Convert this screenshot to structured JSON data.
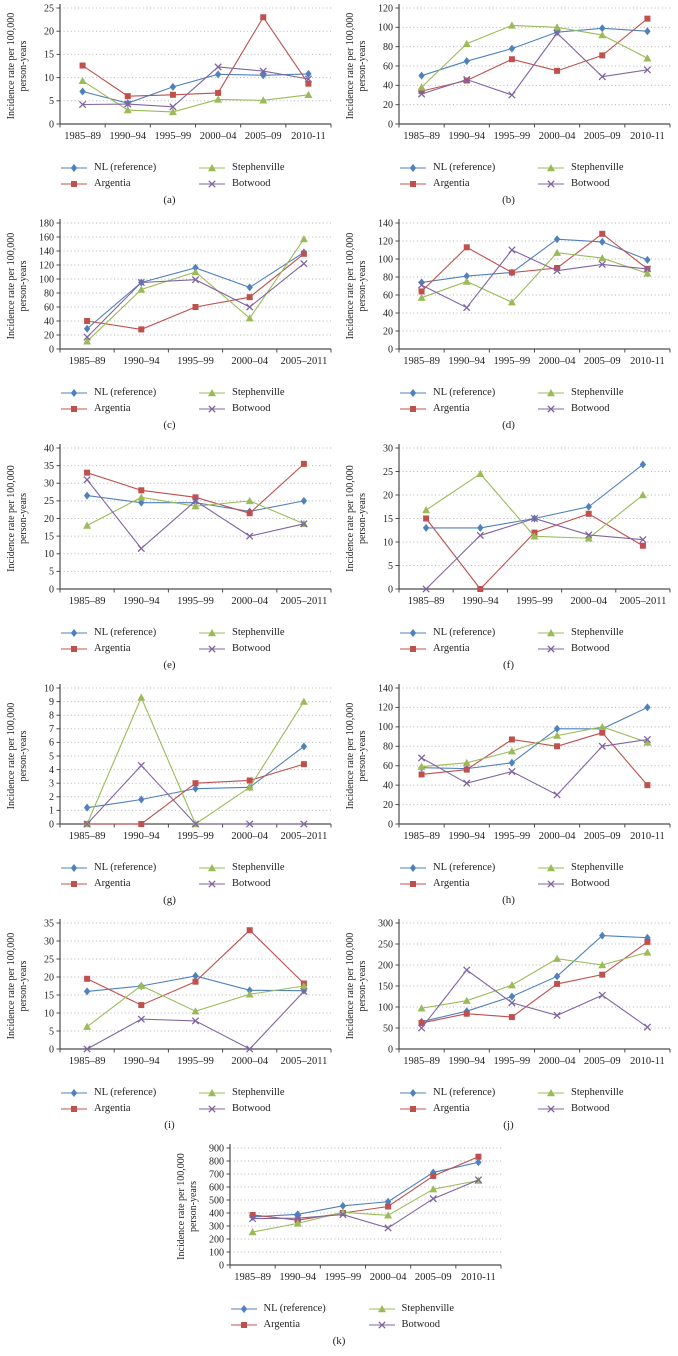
{
  "figure": {
    "y_axis_title_line1": "Incidence rate per 100,000",
    "y_axis_title_line2": "person-years",
    "grid_color": "#b5b5b5",
    "axis_color": "#4d4d4d",
    "text_color": "#1f1f1f",
    "series_styles": [
      {
        "name": "NL (reference)",
        "color": "#4f81bd",
        "marker": "diamond"
      },
      {
        "name": "Argentia",
        "color": "#c0504d",
        "marker": "square"
      },
      {
        "name": "Stephenville",
        "color": "#9bbb59",
        "marker": "triangle"
      },
      {
        "name": "Botwood",
        "color": "#8064a2",
        "marker": "x"
      }
    ],
    "legend_order": [
      "NL (reference)",
      "Stephenville",
      "Argentia",
      "Botwood"
    ]
  },
  "chart_data": [
    {
      "type": "line",
      "label": "(a)",
      "ylabel": "Incidence rate per 100,000 person-years",
      "categories": [
        "1985–89",
        "1990–94",
        "1995–99",
        "2000–04",
        "2005–09",
        "2010-11"
      ],
      "ylim": [
        0,
        25
      ],
      "ystep": 5,
      "series": [
        {
          "name": "NL (reference)",
          "values": [
            7,
            4.5,
            8,
            10.7,
            10.5,
            10.8
          ]
        },
        {
          "name": "Argentia",
          "values": [
            12.6,
            6,
            6.3,
            6.7,
            23,
            8.7
          ]
        },
        {
          "name": "Stephenville",
          "values": [
            9.3,
            3,
            2.6,
            5.3,
            5.1,
            6.3
          ]
        },
        {
          "name": "Botwood",
          "values": [
            4.2,
            4.3,
            3.7,
            12.3,
            11.4,
            9.7
          ]
        }
      ]
    },
    {
      "type": "line",
      "label": "(b)",
      "ylabel": "Incidence rate per 100,000 person-years",
      "categories": [
        "1985–89",
        "1990–94",
        "1995–99",
        "2000–04",
        "2005–09",
        "2010-11"
      ],
      "ylim": [
        0,
        120
      ],
      "ystep": 20,
      "series": [
        {
          "name": "NL (reference)",
          "values": [
            50,
            65,
            78,
            95,
            99,
            96
          ]
        },
        {
          "name": "Argentia",
          "values": [
            34,
            45,
            67,
            55,
            71,
            109
          ]
        },
        {
          "name": "Stephenville",
          "values": [
            38,
            83,
            102,
            100,
            92,
            68
          ]
        },
        {
          "name": "Botwood",
          "values": [
            31,
            46,
            30,
            94,
            49,
            56
          ]
        }
      ]
    },
    {
      "type": "line",
      "label": "(c)",
      "ylabel": "Incidence rate per 100,000 person-years",
      "categories": [
        "1985–89",
        "1990–94",
        "1995–99",
        "2000–04",
        "2005–2011"
      ],
      "ylim": [
        0,
        180
      ],
      "ystep": 20,
      "series": [
        {
          "name": "NL (reference)",
          "values": [
            29,
            95,
            116,
            88,
            138
          ]
        },
        {
          "name": "Argentia",
          "values": [
            40,
            28,
            60,
            74,
            136
          ]
        },
        {
          "name": "Stephenville",
          "values": [
            11,
            85,
            110,
            44,
            157
          ]
        },
        {
          "name": "Botwood",
          "values": [
            17,
            95,
            99,
            60,
            122
          ]
        }
      ]
    },
    {
      "type": "line",
      "label": "(d)",
      "ylabel": "Incidence rate per 100,000 person-years",
      "categories": [
        "1985–89",
        "1990–94",
        "1995–99",
        "2000–04",
        "2005–09",
        "2010-11"
      ],
      "ylim": [
        0,
        140
      ],
      "ystep": 20,
      "series": [
        {
          "name": "NL (reference)",
          "values": [
            74,
            81,
            85,
            122,
            119,
            99
          ]
        },
        {
          "name": "Argentia",
          "values": [
            64,
            113,
            85,
            90,
            128,
            89
          ]
        },
        {
          "name": "Stephenville",
          "values": [
            57,
            75,
            52,
            107,
            101,
            84
          ]
        },
        {
          "name": "Botwood",
          "values": [
            71,
            46,
            110,
            87,
            94,
            89
          ]
        }
      ]
    },
    {
      "type": "line",
      "label": "(e)",
      "ylabel": "Incidence rate per 100,000 person-years",
      "categories": [
        "1985–89",
        "1990–94",
        "1995–99",
        "2000–04",
        "2005–2011"
      ],
      "ylim": [
        0,
        40
      ],
      "ystep": 5,
      "series": [
        {
          "name": "NL (reference)",
          "values": [
            26.5,
            24.5,
            24.5,
            22,
            25
          ]
        },
        {
          "name": "Argentia",
          "values": [
            33,
            28,
            26,
            21.5,
            35.5
          ]
        },
        {
          "name": "Stephenville",
          "values": [
            18,
            26,
            23.5,
            25,
            18.5
          ]
        },
        {
          "name": "Botwood",
          "values": [
            31,
            11.5,
            25,
            15,
            18.5
          ]
        }
      ]
    },
    {
      "type": "line",
      "label": "(f)",
      "ylabel": "Incidence rate per 100,000 person-years",
      "categories": [
        "1985–89",
        "1990–94",
        "1995–99",
        "2000–04",
        "2005–2011"
      ],
      "ylim": [
        0,
        30
      ],
      "ystep": 5,
      "series": [
        {
          "name": "NL (reference)",
          "values": [
            13,
            13,
            15,
            17.5,
            26.5
          ]
        },
        {
          "name": "Argentia",
          "values": [
            15,
            0,
            12,
            16,
            9.2
          ]
        },
        {
          "name": "Stephenville",
          "values": [
            16.8,
            24.5,
            11.2,
            10.8,
            20
          ]
        },
        {
          "name": "Botwood",
          "values": [
            0,
            11.4,
            15,
            11.5,
            10.5
          ]
        }
      ]
    },
    {
      "type": "line",
      "label": "(g)",
      "ylabel": "Incidence rate per 100,000 person-years",
      "categories": [
        "1985–89",
        "1990–94",
        "1995–99",
        "2000–04",
        "2005–2011"
      ],
      "ylim": [
        0,
        10
      ],
      "ystep": 1,
      "series": [
        {
          "name": "NL (reference)",
          "values": [
            1.2,
            1.8,
            2.6,
            2.7,
            5.7
          ]
        },
        {
          "name": "Argentia",
          "values": [
            0,
            0,
            3,
            3.2,
            4.4
          ]
        },
        {
          "name": "Stephenville",
          "values": [
            0,
            9.3,
            0,
            2.7,
            9
          ]
        },
        {
          "name": "Botwood",
          "values": [
            0,
            4.3,
            0,
            0,
            0
          ]
        }
      ]
    },
    {
      "type": "line",
      "label": "(h)",
      "ylabel": "Incidence rate per 100,000 person-years",
      "categories": [
        "1985–89",
        "1990–94",
        "1995–99",
        "2000–04",
        "2005–09",
        "2010-11"
      ],
      "ylim": [
        0,
        140
      ],
      "ystep": 20,
      "series": [
        {
          "name": "NL (reference)",
          "values": [
            58,
            57,
            63,
            98,
            98,
            120
          ]
        },
        {
          "name": "Argentia",
          "values": [
            51,
            56,
            87,
            80,
            94,
            40
          ]
        },
        {
          "name": "Stephenville",
          "values": [
            59,
            63,
            75,
            91,
            100,
            84
          ]
        },
        {
          "name": "Botwood",
          "values": [
            68,
            42,
            54,
            30,
            80,
            87
          ]
        }
      ]
    },
    {
      "type": "line",
      "label": "(i)",
      "ylabel": "Incidence rate per 100,000 person-years",
      "categories": [
        "1985–89",
        "1990–94",
        "1995–99",
        "2000–04",
        "2005–2011"
      ],
      "ylim": [
        0,
        35
      ],
      "ystep": 5,
      "series": [
        {
          "name": "NL (reference)",
          "values": [
            16,
            17.5,
            20.3,
            16.3,
            16.2
          ]
        },
        {
          "name": "Argentia",
          "values": [
            19.5,
            12.2,
            18.7,
            33,
            18.2
          ]
        },
        {
          "name": "Stephenville",
          "values": [
            6.2,
            17.6,
            10.5,
            15.2,
            17.5
          ]
        },
        {
          "name": "Botwood",
          "values": [
            0,
            8.3,
            7.8,
            0,
            16
          ]
        }
      ]
    },
    {
      "type": "line",
      "label": "(j)",
      "ylabel": "Incidence rate per 100,000 person-years",
      "categories": [
        "1985–89",
        "1990–94",
        "1995–99",
        "2000–04",
        "2005–09",
        "2010-11"
      ],
      "ylim": [
        0,
        300
      ],
      "ystep": 50,
      "series": [
        {
          "name": "NL (reference)",
          "values": [
            65,
            90,
            125,
            173,
            270,
            265
          ]
        },
        {
          "name": "Argentia",
          "values": [
            62,
            84,
            76,
            155,
            177,
            255
          ]
        },
        {
          "name": "Stephenville",
          "values": [
            97,
            115,
            152,
            215,
            200,
            230
          ]
        },
        {
          "name": "Botwood",
          "values": [
            50,
            188,
            110,
            80,
            128,
            52
          ]
        }
      ]
    },
    {
      "type": "line",
      "label": "(k)",
      "ylabel": "Incidence rate per 100,000 person-years",
      "categories": [
        "1985–89",
        "1990–94",
        "1995–99",
        "2000–04",
        "2005–09",
        "2010-11"
      ],
      "ylim": [
        0,
        900
      ],
      "ystep": 100,
      "series": [
        {
          "name": "NL (reference)",
          "values": [
            370,
            390,
            455,
            487,
            712,
            790
          ]
        },
        {
          "name": "Argentia",
          "values": [
            385,
            345,
            400,
            450,
            685,
            833
          ]
        },
        {
          "name": "Stephenville",
          "values": [
            253,
            320,
            405,
            382,
            583,
            650
          ]
        },
        {
          "name": "Botwood",
          "values": [
            357,
            360,
            388,
            285,
            510,
            655
          ]
        }
      ]
    }
  ]
}
